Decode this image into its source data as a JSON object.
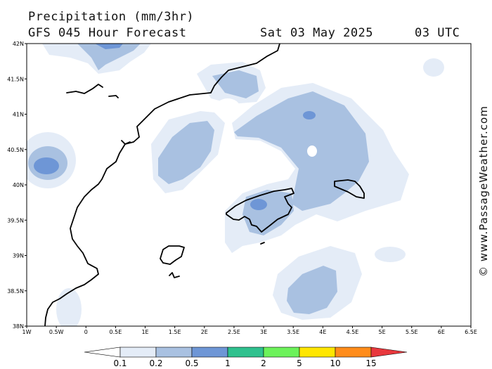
{
  "header": {
    "title": "Precipitation (mm/3hr)",
    "subtitle": "GFS 045 Hour Forecast",
    "date": "Sat 03 May 2025",
    "time": "03 UTC"
  },
  "credit": "© www.PassageWeather.com",
  "map": {
    "lat_labels": [
      "42N",
      "41.5N",
      "41N",
      "40.5N",
      "40N",
      "39.5N",
      "39N",
      "38.5N",
      "38N"
    ],
    "lon_labels": [
      "1W",
      "0.5W",
      "0",
      "0.5E",
      "1E",
      "1.5E",
      "2E",
      "2.5E",
      "3E",
      "3.5E",
      "4E",
      "4.5E",
      "5E",
      "5.5E",
      "6E",
      "6.5E"
    ]
  },
  "colorbar": {
    "labels": [
      "0.1",
      "0.2",
      "0.5",
      "1",
      "2",
      "5",
      "10",
      "15"
    ],
    "colors": [
      "#ffffff",
      "#e4ecf7",
      "#a9c1e1",
      "#6e96d6",
      "#2fc18e",
      "#6cf25a",
      "#ffe600",
      "#ff8c1a",
      "#e8383d"
    ]
  }
}
